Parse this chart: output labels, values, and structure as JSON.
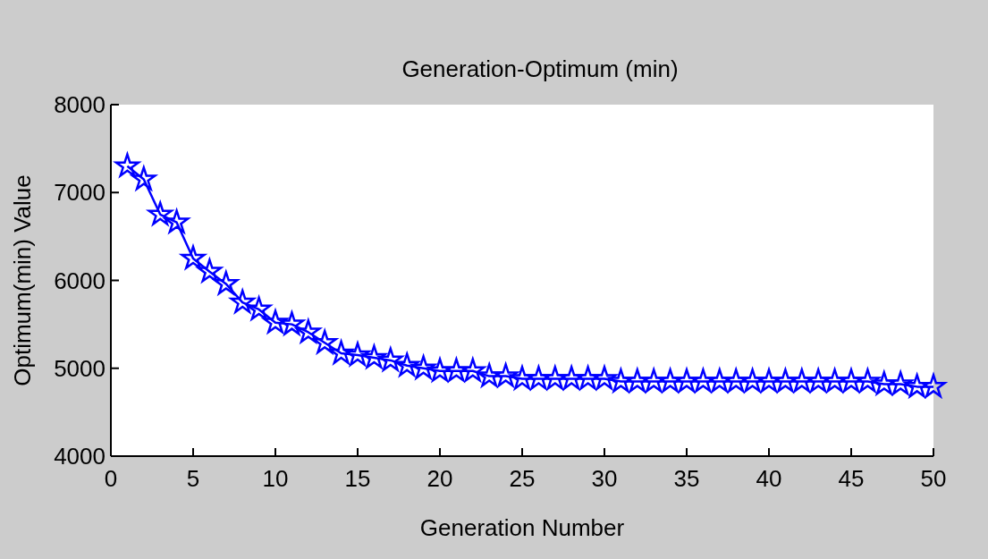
{
  "chart_data": {
    "type": "line",
    "title": "Generation-Optimum (min)",
    "xlabel": "Generation Number",
    "ylabel": "Optimum(min) Value",
    "x": [
      1,
      2,
      3,
      4,
      5,
      6,
      7,
      8,
      9,
      10,
      11,
      12,
      13,
      14,
      15,
      16,
      17,
      18,
      19,
      20,
      21,
      22,
      23,
      24,
      25,
      26,
      27,
      28,
      29,
      30,
      31,
      32,
      33,
      34,
      35,
      36,
      37,
      38,
      39,
      40,
      41,
      42,
      43,
      44,
      45,
      46,
      47,
      48,
      49,
      50
    ],
    "series": [
      {
        "color": "#0000ff",
        "values": [
          7300,
          7150,
          6750,
          6660,
          6250,
          6100,
          5960,
          5750,
          5670,
          5520,
          5500,
          5410,
          5290,
          5170,
          5150,
          5120,
          5090,
          5030,
          5000,
          4970,
          4970,
          4970,
          4910,
          4910,
          4880,
          4880,
          4880,
          4880,
          4880,
          4880,
          4850,
          4850,
          4850,
          4850,
          4850,
          4850,
          4850,
          4850,
          4850,
          4850,
          4850,
          4850,
          4850,
          4850,
          4850,
          4850,
          4820,
          4820,
          4790,
          4790
        ]
      }
    ],
    "xlim": [
      0,
      50
    ],
    "xticks": [
      0,
      5,
      10,
      15,
      20,
      25,
      30,
      35,
      40,
      45,
      50
    ],
    "ylim": [
      4000,
      8000
    ],
    "yticks": [
      4000,
      5000,
      6000,
      7000,
      8000
    ],
    "grid": false,
    "marker": "star",
    "line_style": "solid"
  }
}
